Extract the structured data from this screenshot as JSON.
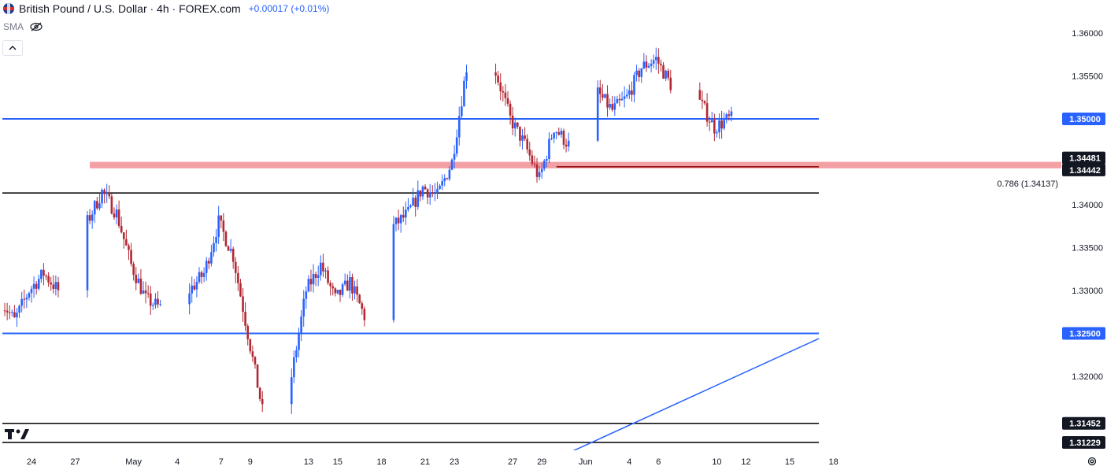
{
  "header": {
    "title": "British Pound / U.S. Dollar · 4h · FOREX.com",
    "change": "+0.00017 (+0.01%)",
    "indicator": "SMA"
  },
  "icons": {
    "flag": "gbp-usd-flag-icon",
    "visibility": "eye-off-icon",
    "collapse": "chevron-up-icon",
    "logo": "tradingview-logo-icon",
    "settings": "gear-icon"
  },
  "colors": {
    "up": "#2962ff",
    "down": "#b22833",
    "level_line": "#2962ff",
    "black_line": "#000000",
    "resistance_zone": "#f2a0a4",
    "dark_red_line": "#8b0000"
  },
  "chart_data": {
    "type": "candlestick",
    "title": "British Pound / U.S. Dollar · 4h · FOREX.com",
    "ylim": [
      1.3112,
      1.3638
    ],
    "y_ticks": [
      1.36,
      1.355,
      1.35,
      1.34,
      1.335,
      1.33,
      1.325,
      1.32
    ],
    "y_tick_labels": [
      "1.36000",
      "1.35500",
      "1.35000",
      "1.34000",
      "1.33500",
      "1.33000",
      "1.32500",
      "1.32000"
    ],
    "x_labels": [
      {
        "label": "24",
        "date": "2025-04-24"
      },
      {
        "label": "27",
        "date": "2025-04-27"
      },
      {
        "label": "May",
        "date": "2025-05-01"
      },
      {
        "label": "4",
        "date": "2025-05-04"
      },
      {
        "label": "7",
        "date": "2025-05-07"
      },
      {
        "label": "9",
        "date": "2025-05-09"
      },
      {
        "label": "13",
        "date": "2025-05-13"
      },
      {
        "label": "15",
        "date": "2025-05-15"
      },
      {
        "label": "18",
        "date": "2025-05-18"
      },
      {
        "label": "21",
        "date": "2025-05-21"
      },
      {
        "label": "23",
        "date": "2025-05-23"
      },
      {
        "label": "27",
        "date": "2025-05-27"
      },
      {
        "label": "29",
        "date": "2025-05-29"
      },
      {
        "label": "Jun",
        "date": "2025-06-01"
      },
      {
        "label": "4",
        "date": "2025-06-04"
      },
      {
        "label": "6",
        "date": "2025-06-06"
      },
      {
        "label": "10",
        "date": "2025-06-10"
      },
      {
        "label": "12",
        "date": "2025-06-12"
      },
      {
        "label": "15",
        "date": "2025-06-15"
      },
      {
        "label": "18",
        "date": "2025-06-18"
      }
    ],
    "price_tags": [
      {
        "name": "level-1-35000",
        "label": "1.35000",
        "price": 1.35,
        "style": "blue"
      },
      {
        "name": "level-1-34481",
        "label": "1.34481",
        "price": 1.34481,
        "style": "black"
      },
      {
        "name": "level-1-34442",
        "label": "1.34442",
        "price": 1.34442,
        "style": "black"
      },
      {
        "name": "level-1-32500",
        "label": "1.32500",
        "price": 1.325,
        "style": "blue"
      },
      {
        "name": "level-1-31452",
        "label": "1.31452",
        "price": 1.31452,
        "style": "black"
      },
      {
        "name": "level-1-31229",
        "label": "1.31229",
        "price": 1.31229,
        "style": "black"
      }
    ],
    "horizontal_lines": [
      {
        "name": "support-1-35000-line",
        "price": 1.35,
        "color": "#2962ff",
        "from": "2025-04-22",
        "to": "2025-06-17"
      },
      {
        "name": "support-1-32500-line",
        "price": 1.325,
        "color": "#2962ff",
        "from": "2025-04-22",
        "to": "2025-06-17"
      },
      {
        "name": "fib-0786-line",
        "price": 1.34137,
        "color": "#000000",
        "from": "2025-04-22",
        "to": "2025-06-17"
      },
      {
        "name": "low-1-31452-line",
        "price": 1.31452,
        "color": "#000000",
        "from": "2025-04-22",
        "to": "2025-06-17"
      },
      {
        "name": "low-1-31229-line",
        "price": 1.31229,
        "color": "#000000",
        "from": "2025-04-22",
        "to": "2025-06-17"
      },
      {
        "name": "dark-red-1-34442-line",
        "price": 1.34442,
        "color": "#8b0000",
        "from": "2025-05-30",
        "to": "2025-06-17"
      }
    ],
    "zones": [
      {
        "name": "resistance-zone",
        "from": "2025-04-28",
        "to": "2025-06-17",
        "low": 1.34442,
        "high": 1.34481,
        "color": "#f2a0a4"
      }
    ],
    "trendline": {
      "name": "rising-trendline",
      "from_date": "2025-05-31",
      "from_price": 1.3112,
      "to_date": "2025-06-17",
      "to_price": 1.3244,
      "color": "#2962ff"
    },
    "annotations": [
      {
        "name": "fib-0786-label",
        "text": "0.786 (1.34137)",
        "date": "2025-06-14",
        "price": 1.34137
      }
    ],
    "path": [
      [
        "2025-04-22",
        1.329
      ],
      [
        "2025-04-23",
        1.3265
      ],
      [
        "2025-04-24",
        1.33
      ],
      [
        "2025-04-25",
        1.332
      ],
      [
        "2025-04-26",
        1.33
      ],
      [
        "2025-04-27",
        1.3315
      ],
      [
        "2025-04-28",
        1.338
      ],
      [
        "2025-04-29",
        1.3415
      ],
      [
        "2025-04-30",
        1.339
      ],
      [
        "2025-05-01",
        1.333
      ],
      [
        "2025-05-02",
        1.329
      ],
      [
        "2025-05-03",
        1.328
      ],
      [
        "2025-05-04",
        1.3275
      ],
      [
        "2025-05-05",
        1.33
      ],
      [
        "2025-05-06",
        1.332
      ],
      [
        "2025-05-07",
        1.338
      ],
      [
        "2025-05-08",
        1.334
      ],
      [
        "2025-05-09",
        1.325
      ],
      [
        "2025-05-10",
        1.316
      ],
      [
        "2025-05-11",
        1.3165
      ],
      [
        "2025-05-12",
        1.32
      ],
      [
        "2025-05-13",
        1.33
      ],
      [
        "2025-05-14",
        1.333
      ],
      [
        "2025-05-15",
        1.329
      ],
      [
        "2025-05-16",
        1.331
      ],
      [
        "2025-05-17",
        1.327
      ],
      [
        "2025-05-18",
        1.329
      ],
      [
        "2025-05-19",
        1.3375
      ],
      [
        "2025-05-20",
        1.339
      ],
      [
        "2025-05-21",
        1.342
      ],
      [
        "2025-05-22",
        1.341
      ],
      [
        "2025-05-23",
        1.345
      ],
      [
        "2025-05-24",
        1.356
      ],
      [
        "2025-05-25",
        1.356
      ],
      [
        "2025-05-26",
        1.3555
      ],
      [
        "2025-05-27",
        1.35
      ],
      [
        "2025-05-28",
        1.347
      ],
      [
        "2025-05-29",
        1.343
      ],
      [
        "2025-05-30",
        1.349
      ],
      [
        "2025-05-31",
        1.347
      ],
      [
        "2025-06-01",
        1.346
      ],
      [
        "2025-06-02",
        1.353
      ],
      [
        "2025-06-03",
        1.351
      ],
      [
        "2025-06-04",
        1.3525
      ],
      [
        "2025-06-05",
        1.356
      ],
      [
        "2025-06-06",
        1.357
      ],
      [
        "2025-06-07",
        1.354
      ],
      [
        "2025-06-08",
        1.354
      ],
      [
        "2025-06-09",
        1.352
      ],
      [
        "2025-06-10",
        1.349
      ],
      [
        "2025-06-11",
        1.35
      ]
    ]
  }
}
